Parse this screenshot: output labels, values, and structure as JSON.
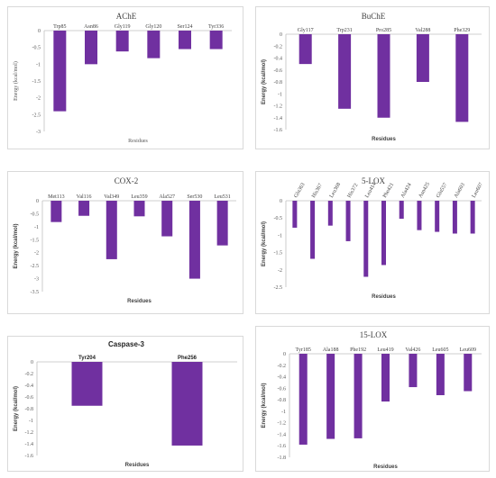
{
  "theme": {
    "bar_color": "#7030a0",
    "axis_color": "#bfbfbf",
    "text_color": "#595959"
  },
  "chart_data": [
    {
      "type": "bar",
      "title": "AChE",
      "categories": [
        "Trp85",
        "Asn86",
        "Gly119",
        "Gly120",
        "Ser124",
        "Tyr336"
      ],
      "values": [
        -2.4,
        -1.0,
        -0.62,
        -0.82,
        -0.55,
        -0.55
      ],
      "yticks": [
        "0",
        "-0.5",
        "-1",
        "-1.5",
        "-2",
        "-2.5",
        "-3"
      ],
      "ylim": [
        -3,
        0
      ],
      "xlabel": "Residues",
      "ylabel": "Energy (kcal/mol)",
      "grid": false,
      "style": "serif"
    },
    {
      "type": "bar",
      "title": "BuChE",
      "categories": [
        "Gly117",
        "Trp231",
        "Pro285",
        "Val288",
        "Phe329"
      ],
      "values": [
        -0.5,
        -1.25,
        -1.4,
        -0.8,
        -1.47
      ],
      "yticks": [
        "0",
        "-0.2",
        "-0.4",
        "-0.6",
        "-0.8",
        "-1",
        "-1.2",
        "-1.4",
        "-1.6"
      ],
      "ylim": [
        -1.6,
        0
      ],
      "xlabel": "Residues",
      "ylabel": "Energy (kcal/mol)",
      "grid": false,
      "style": "mixed"
    },
    {
      "type": "bar",
      "title": "COX-2",
      "categories": [
        "Met113",
        "Val116",
        "Val349",
        "Leu359",
        "Ala527",
        "Ser530",
        "Leu531"
      ],
      "values": [
        -0.82,
        -0.58,
        -2.25,
        -0.6,
        -1.37,
        -3.0,
        -1.72
      ],
      "yticks": [
        "0",
        "-0.5",
        "-1",
        "-1.5",
        "-2",
        "-2.5",
        "-3",
        "-3.5"
      ],
      "ylim": [
        -3.5,
        0
      ],
      "xlabel": "Residues",
      "ylabel": "Energy (kcal/mol)",
      "grid": false,
      "style": "mixed"
    },
    {
      "type": "bar",
      "title": "5-LOX",
      "categories": [
        "Gln363",
        "His367",
        "Leu368",
        "His372",
        "Leu414",
        "Phe421",
        "Ala424",
        "Asn425",
        "Gln557",
        "Ala603",
        "Leu607"
      ],
      "values": [
        -0.78,
        -1.68,
        -0.72,
        -1.17,
        -2.2,
        -1.86,
        -0.52,
        -0.85,
        -0.9,
        -0.95,
        -0.95
      ],
      "yticks": [
        "0",
        "-0.5",
        "-1",
        "-1.5",
        "-2",
        "-2.5"
      ],
      "ylim": [
        -2.5,
        0
      ],
      "xlabel": "Residues",
      "ylabel": "Energy (kcal/mol)",
      "grid": false,
      "style": "mixed"
    },
    {
      "type": "bar",
      "title": "Caspase-3",
      "categories": [
        "Tyr204",
        "Phe256"
      ],
      "values": [
        -0.75,
        -1.43
      ],
      "yticks": [
        "0",
        "-0.2",
        "-0.4",
        "-0.6",
        "-0.8",
        "-1",
        "-1.2",
        "-1.4",
        "-1.6"
      ],
      "ylim": [
        -1.6,
        0
      ],
      "xlabel": "Residues",
      "ylabel": "Energy (kcal/mol)",
      "grid": false,
      "style": "bold"
    },
    {
      "type": "bar",
      "title": "15-LOX",
      "categories": [
        "Tyr185",
        "Ala188",
        "Phe192",
        "Leu419",
        "Val426",
        "Leu605",
        "Leu609"
      ],
      "values": [
        -1.58,
        -1.48,
        -1.47,
        -0.83,
        -0.58,
        -0.72,
        -0.65
      ],
      "yticks": [
        "0",
        "-0.2",
        "-0.4",
        "-0.6",
        "-0.8",
        "-1",
        "-1.2",
        "-1.4",
        "-1.6",
        "-1.8"
      ],
      "ylim": [
        -1.8,
        0
      ],
      "xlabel": "Residues",
      "ylabel": "Energy (kcal/mol)",
      "grid": false,
      "style": "mixed"
    }
  ]
}
